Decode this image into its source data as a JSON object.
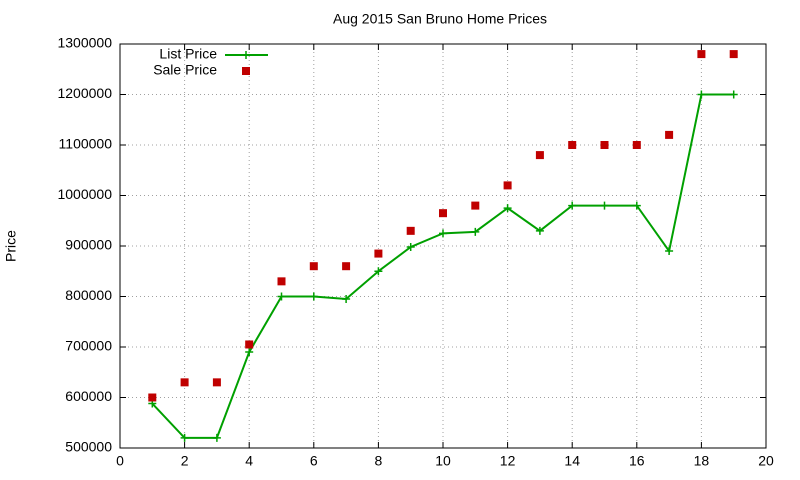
{
  "chart_data": {
    "type": "line",
    "title": "Aug 2015 San Bruno Home Prices",
    "y_label": "Price",
    "x": [
      1,
      2,
      3,
      4,
      5,
      6,
      7,
      8,
      9,
      10,
      11,
      12,
      13,
      14,
      15,
      16,
      17,
      18,
      19
    ],
    "series": [
      {
        "name": "List Price",
        "color": "#00a000",
        "style": "linespoints",
        "values": [
          588000,
          520000,
          520000,
          690000,
          800000,
          800000,
          795000,
          850000,
          898000,
          925000,
          928000,
          975000,
          930000,
          980000,
          980000,
          980000,
          890000,
          1200000,
          1200000
        ]
      },
      {
        "name": "Sale Price",
        "color": "#c00000",
        "style": "points",
        "values": [
          600000,
          630000,
          630000,
          705000,
          830000,
          860000,
          860000,
          885000,
          930000,
          965000,
          980000,
          1020000,
          1080000,
          1100000,
          1100000,
          1100000,
          1120000,
          1280000,
          1280000
        ]
      }
    ],
    "xlim": [
      0,
      20
    ],
    "xticks": [
      0,
      2,
      4,
      6,
      8,
      10,
      12,
      14,
      16,
      18,
      20
    ],
    "ylim": [
      500000,
      1300000
    ],
    "yticks": [
      500000,
      600000,
      700000,
      800000,
      900000,
      1000000,
      1100000,
      1200000,
      1300000
    ],
    "grid": true,
    "legend": "top-left"
  }
}
